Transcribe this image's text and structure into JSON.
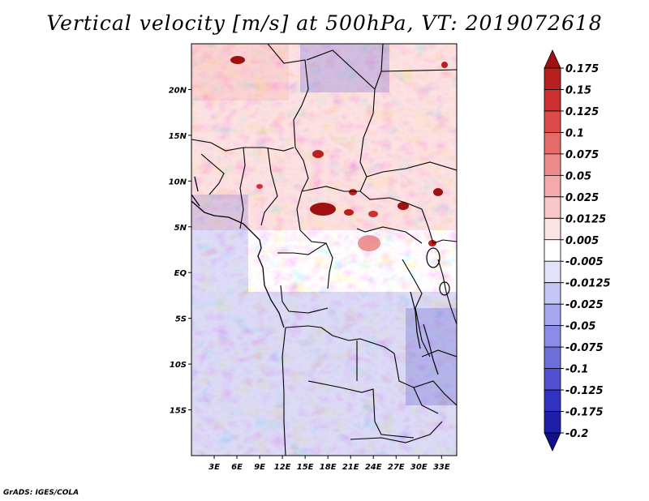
{
  "title": "Vertical velocity [m/s] at 500hPa, VT: 2019072618",
  "credit": "GrADS: IGES/COLA",
  "map": {
    "lon_range": [
      0,
      35
    ],
    "lat_range": [
      -20,
      25
    ],
    "lon_ticks": [
      {
        "value": 3,
        "label": "3E"
      },
      {
        "value": 6,
        "label": "6E"
      },
      {
        "value": 9,
        "label": "9E"
      },
      {
        "value": 12,
        "label": "12E"
      },
      {
        "value": 15,
        "label": "15E"
      },
      {
        "value": 18,
        "label": "18E"
      },
      {
        "value": 21,
        "label": "21E"
      },
      {
        "value": 24,
        "label": "24E"
      },
      {
        "value": 27,
        "label": "27E"
      },
      {
        "value": 30,
        "label": "30E"
      },
      {
        "value": 33,
        "label": "33E"
      }
    ],
    "lat_ticks": [
      {
        "value": 20,
        "label": "20N"
      },
      {
        "value": 15,
        "label": "15N"
      },
      {
        "value": 10,
        "label": "10N"
      },
      {
        "value": 5,
        "label": "5N"
      },
      {
        "value": 0,
        "label": "EQ"
      },
      {
        "value": -5,
        "label": "5S"
      },
      {
        "value": -10,
        "label": "10S"
      },
      {
        "value": -15,
        "label": "15S"
      }
    ]
  },
  "colorbar": {
    "levels": [
      "0.175",
      "0.15",
      "0.125",
      "0.1",
      "0.075",
      "0.05",
      "0.025",
      "0.0125",
      "0.005",
      "-0.005",
      "-0.0125",
      "-0.025",
      "-0.05",
      "-0.075",
      "-0.1",
      "-0.125",
      "-0.175",
      "-0.2"
    ],
    "colors": [
      "#a01010",
      "#b82020",
      "#cc3030",
      "#dd4a4a",
      "#e56a6a",
      "#ee8c8c",
      "#f4aaaa",
      "#f8c8c8",
      "#fbe4e4",
      "#ffffff",
      "#e2e2fb",
      "#c6c6f6",
      "#a8a8ef",
      "#8c8ce8",
      "#6e6edd",
      "#5050d0",
      "#3232c2",
      "#1e1eaa",
      "#10108a"
    ]
  }
}
